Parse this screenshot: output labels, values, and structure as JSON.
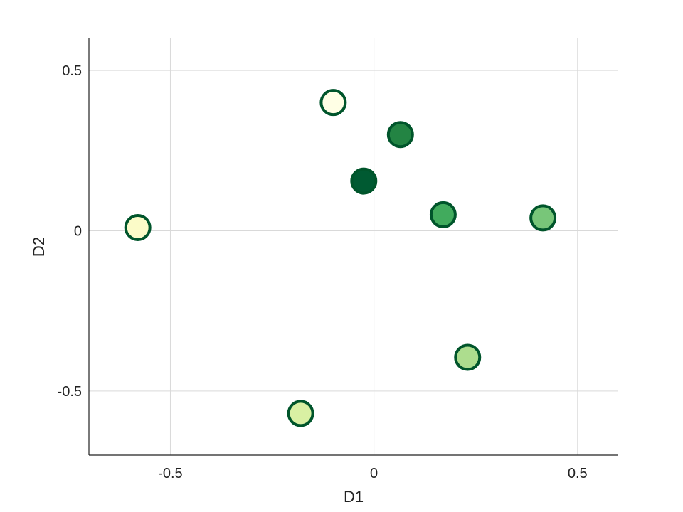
{
  "chart_data": {
    "type": "scatter",
    "title": "",
    "xlabel": "D1",
    "ylabel": "D2",
    "xlim": [
      -0.7,
      0.6
    ],
    "ylim": [
      -0.7,
      0.6
    ],
    "xticks": [
      -0.5,
      0,
      0.5
    ],
    "yticks": [
      -0.5,
      0,
      0.5
    ],
    "xtick_labels": [
      "-0.5",
      "0",
      "0.5"
    ],
    "ytick_labels": [
      "-0.5",
      "0",
      "0.5"
    ],
    "grid": true,
    "legend": "none",
    "marker_edge_color": "#00552B",
    "points": [
      {
        "x": -0.58,
        "y": 0.01,
        "fill": "#FBFBC8"
      },
      {
        "x": -0.18,
        "y": -0.57,
        "fill": "#D9F0A3"
      },
      {
        "x": -0.1,
        "y": 0.4,
        "fill": "#FFFFE5"
      },
      {
        "x": -0.025,
        "y": 0.155,
        "fill": "#005A32"
      },
      {
        "x": 0.065,
        "y": 0.3,
        "fill": "#238443"
      },
      {
        "x": 0.17,
        "y": 0.05,
        "fill": "#41AB5D"
      },
      {
        "x": 0.23,
        "y": -0.395,
        "fill": "#ADDD8E"
      },
      {
        "x": 0.415,
        "y": 0.04,
        "fill": "#78C679"
      }
    ]
  }
}
